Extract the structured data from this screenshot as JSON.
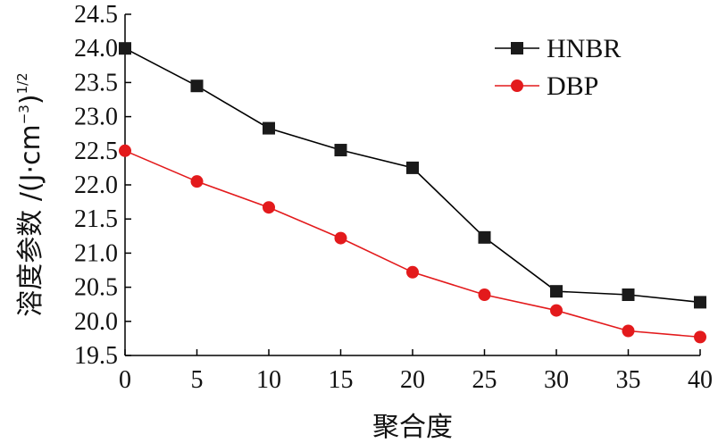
{
  "chart_data": {
    "type": "line",
    "xlabel": "聚合度",
    "ylabel": {
      "text": "溶度参数 /(J·cm",
      "exp1": "−3",
      "close": ")",
      "exp2": "1/2"
    },
    "x": [
      0,
      5,
      10,
      15,
      20,
      25,
      30,
      35,
      40
    ],
    "xlim": [
      0,
      40
    ],
    "ylim": [
      19.5,
      24.5
    ],
    "xticks": [
      "0",
      "5",
      "10",
      "15",
      "20",
      "25",
      "30",
      "35",
      "40"
    ],
    "yticks": [
      "19.5",
      "20.0",
      "20.5",
      "21.0",
      "21.5",
      "22.0",
      "22.5",
      "23.0",
      "23.5",
      "24.0",
      "24.5"
    ],
    "grid": false,
    "legend_position": "top-right",
    "series": [
      {
        "name": "HNBR",
        "marker": "square",
        "line_color": "#000000",
        "marker_color": "#1a1a1a",
        "values": [
          24.0,
          23.45,
          22.83,
          22.51,
          22.25,
          21.23,
          20.44,
          20.39,
          20.28
        ]
      },
      {
        "name": "DBP",
        "marker": "circle",
        "line_color": "#e31a1c",
        "marker_color": "#e31a1c",
        "values": [
          22.5,
          22.05,
          21.67,
          21.22,
          20.72,
          20.39,
          20.16,
          19.86,
          19.77
        ]
      }
    ]
  }
}
